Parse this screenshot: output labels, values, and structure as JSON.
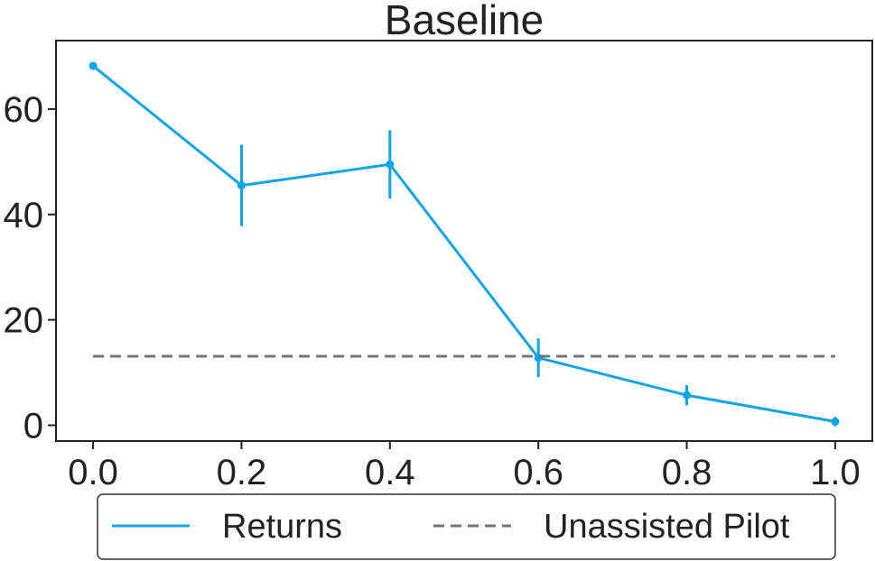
{
  "chart_data": {
    "type": "line",
    "title": "Baseline",
    "xlabel": "",
    "ylabel": "",
    "xlim": [
      -0.05,
      1.05
    ],
    "ylim": [
      -3,
      73
    ],
    "x_ticks": [
      "0.0",
      "0.2",
      "0.4",
      "0.6",
      "0.8",
      "1.0"
    ],
    "y_ticks": [
      "0",
      "20",
      "40",
      "60"
    ],
    "grid": false,
    "legend_position": "bottom-center",
    "series": [
      {
        "name": "Returns",
        "color": "#0EA5E9",
        "style": "solid",
        "x": [
          0.0,
          0.2,
          0.4,
          0.6,
          0.8,
          1.0
        ],
        "y": [
          68.2,
          45.5,
          49.5,
          12.8,
          5.7,
          0.7
        ],
        "error": [
          0.4,
          7.7,
          6.5,
          3.7,
          1.9,
          0.9
        ]
      },
      {
        "name": "Unassisted Pilot",
        "color": "#757575",
        "style": "dashed",
        "x": [
          0.0,
          1.0
        ],
        "y": [
          13.1,
          13.1
        ]
      }
    ]
  }
}
